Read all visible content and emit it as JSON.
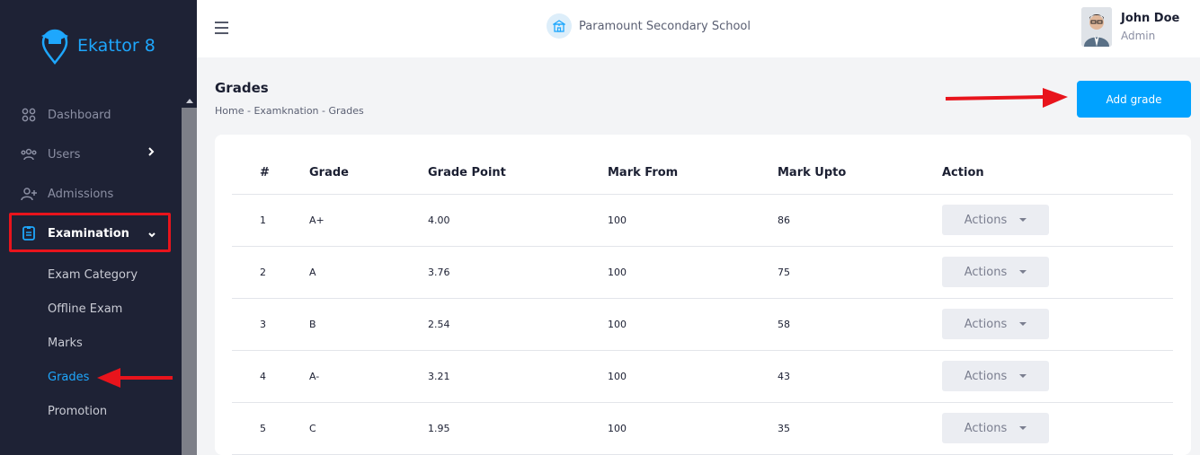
{
  "brand": {
    "name": "Ekattor 8"
  },
  "sidebar": {
    "items": [
      {
        "label": "Dashboard"
      },
      {
        "label": "Users"
      },
      {
        "label": "Admissions"
      },
      {
        "label": "Examination"
      }
    ],
    "subitems": [
      {
        "label": "Exam Category"
      },
      {
        "label": "Offline Exam"
      },
      {
        "label": "Marks"
      },
      {
        "label": "Grades"
      },
      {
        "label": "Promotion"
      }
    ]
  },
  "header": {
    "school_name": "Paramount Secondary School"
  },
  "user": {
    "name": "John Doe",
    "role": "Admin"
  },
  "page": {
    "title": "Grades",
    "breadcrumb": "Home - Examknation - Grades",
    "add_button": "Add grade"
  },
  "table": {
    "headers": [
      "#",
      "Grade",
      "Grade Point",
      "Mark From",
      "Mark Upto",
      "Action"
    ],
    "rows": [
      {
        "num": "1",
        "grade": "A+",
        "point": "4.00",
        "from": "100",
        "upto": "86",
        "action": "Actions"
      },
      {
        "num": "2",
        "grade": "A",
        "point": "3.76",
        "from": "100",
        "upto": "75",
        "action": "Actions"
      },
      {
        "num": "3",
        "grade": "B",
        "point": "2.54",
        "from": "100",
        "upto": "58",
        "action": "Actions"
      },
      {
        "num": "4",
        "grade": "A-",
        "point": "3.21",
        "from": "100",
        "upto": "43",
        "action": "Actions"
      },
      {
        "num": "5",
        "grade": "C",
        "point": "1.95",
        "from": "100",
        "upto": "35",
        "action": "Actions"
      }
    ]
  },
  "colors": {
    "accent": "#00a2ff",
    "sidebar": "#1e2235",
    "highlight": "#e8141c"
  }
}
